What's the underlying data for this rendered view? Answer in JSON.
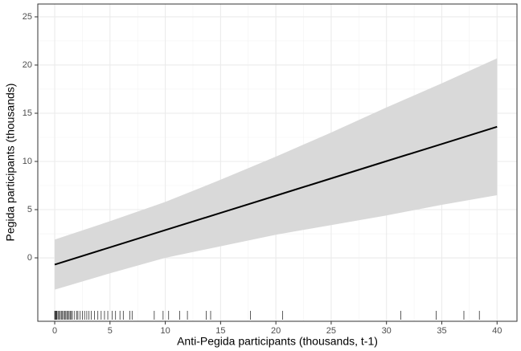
{
  "chart_data": {
    "type": "line",
    "x_label": "Anti-Pegida participants (thousands, t-1)",
    "y_label": "Pegida participants (thousands)",
    "x": [
      0,
      5,
      10,
      15,
      20,
      25,
      30,
      35,
      40
    ],
    "values": [
      -0.7,
      1.09,
      2.88,
      4.66,
      6.45,
      8.24,
      10.03,
      11.81,
      13.6
    ],
    "lower": [
      -3.3,
      -1.6,
      0.0,
      1.2,
      2.4,
      3.4,
      4.4,
      5.5,
      6.5
    ],
    "upper": [
      1.9,
      3.8,
      5.8,
      8.1,
      10.5,
      13.0,
      15.6,
      18.1,
      20.7
    ],
    "color": "#000000",
    "band_color": "#d9d9d9",
    "rug": [
      0,
      0.05,
      0.1,
      0.15,
      0.2,
      0.3,
      0.4,
      0.5,
      0.6,
      0.7,
      0.8,
      0.9,
      1.0,
      1.1,
      1.2,
      1.3,
      1.4,
      1.5,
      1.6,
      1.8,
      2.0,
      2.1,
      2.3,
      2.5,
      2.7,
      2.9,
      3.1,
      3.3,
      3.6,
      3.9,
      4.2,
      4.5,
      4.8,
      5.2,
      5.5,
      5.9,
      6.2,
      6.8,
      7.0,
      9.0,
      9.8,
      10.3,
      11.3,
      12.0,
      13.7,
      14.1,
      17.7,
      20.6,
      31.3,
      34.5,
      37.0,
      38.4
    ],
    "rug_color": "#333333",
    "xlim": [
      -1.53,
      41.8
    ],
    "ylim": [
      -6.58,
      26.33
    ],
    "xticks": [
      0,
      5,
      10,
      15,
      20,
      25,
      30,
      35,
      40
    ],
    "yticks": [
      0,
      5,
      10,
      15,
      20,
      25
    ],
    "grid": true
  }
}
